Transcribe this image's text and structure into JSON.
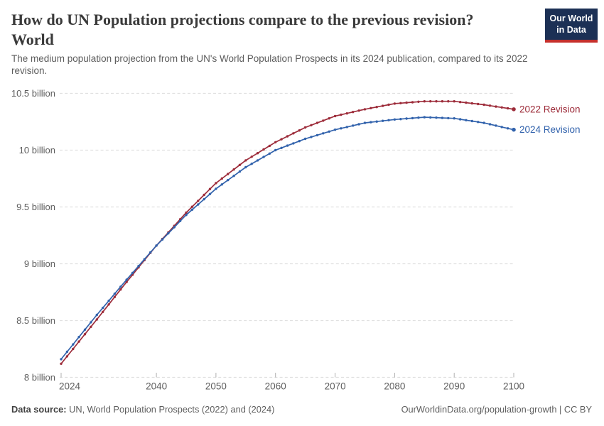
{
  "header": {
    "title_line1": "How do UN Population projections compare to the previous revision?",
    "title_line2": "World",
    "subtitle": "The medium population projection from the UN's World Population Prospects in its 2024 publication, compared to its 2022 revision.",
    "logo": {
      "line1": "Our World",
      "line2": "in Data",
      "bg_color": "#1c3055",
      "accent_color": "#c5302c"
    }
  },
  "footer": {
    "datasource_label": "Data source:",
    "datasource_text": " UN, World Population Prospects (2022) and (2024)",
    "credit": "OurWorldinData.org/population-growth | CC BY"
  },
  "chart_data": {
    "type": "line",
    "title": "How do UN Population projections compare to the previous revision? World",
    "xlabel": "",
    "ylabel": "",
    "unit": "billion people",
    "grid": "horizontal-dashed",
    "legend_position": "right-end-labels",
    "xlim": [
      2024,
      2100
    ],
    "ylim": [
      8,
      10.5
    ],
    "x_ticks": [
      2024,
      2040,
      2050,
      2060,
      2070,
      2080,
      2090,
      2100
    ],
    "y_ticks": [
      8,
      8.5,
      9,
      9.5,
      10,
      10.5
    ],
    "y_tick_labels": [
      "8 billion",
      "8.5 billion",
      "9 billion",
      "9.5 billion",
      "10 billion",
      "10.5 billion"
    ],
    "x": [
      2024,
      2025,
      2026,
      2027,
      2028,
      2029,
      2030,
      2031,
      2032,
      2033,
      2034,
      2035,
      2036,
      2037,
      2038,
      2039,
      2040,
      2041,
      2042,
      2043,
      2044,
      2045,
      2046,
      2047,
      2048,
      2049,
      2050,
      2051,
      2052,
      2053,
      2054,
      2055,
      2056,
      2057,
      2058,
      2059,
      2060,
      2061,
      2062,
      2063,
      2064,
      2065,
      2066,
      2067,
      2068,
      2069,
      2070,
      2071,
      2072,
      2073,
      2074,
      2075,
      2076,
      2077,
      2078,
      2079,
      2080,
      2081,
      2082,
      2083,
      2084,
      2085,
      2086,
      2087,
      2088,
      2089,
      2090,
      2091,
      2092,
      2093,
      2094,
      2095,
      2096,
      2097,
      2098,
      2099,
      2100
    ],
    "series": [
      {
        "name": "2022 Revision",
        "color": "#9D2C3A",
        "values": [
          8.12,
          8.185,
          8.25,
          8.315,
          8.38,
          8.445,
          8.51,
          8.576,
          8.642,
          8.708,
          8.774,
          8.84,
          8.904,
          8.968,
          9.032,
          9.096,
          9.16,
          9.218,
          9.276,
          9.334,
          9.392,
          9.45,
          9.502,
          9.554,
          9.606,
          9.658,
          9.71,
          9.75,
          9.79,
          9.83,
          9.87,
          9.91,
          9.942,
          9.974,
          10.006,
          10.038,
          10.07,
          10.096,
          10.122,
          10.148,
          10.174,
          10.2,
          10.22,
          10.24,
          10.26,
          10.28,
          10.3,
          10.312,
          10.324,
          10.336,
          10.348,
          10.36,
          10.37,
          10.38,
          10.39,
          10.4,
          10.41,
          10.414,
          10.418,
          10.422,
          10.426,
          10.43,
          10.43,
          10.43,
          10.43,
          10.43,
          10.43,
          10.424,
          10.418,
          10.412,
          10.406,
          10.4,
          10.392,
          10.384,
          10.376,
          10.368,
          10.36
        ]
      },
      {
        "name": "2024 Revision",
        "color": "#3162AC",
        "values": [
          8.16,
          8.225,
          8.29,
          8.355,
          8.42,
          8.485,
          8.55,
          8.612,
          8.674,
          8.736,
          8.798,
          8.86,
          8.92,
          8.98,
          9.04,
          9.1,
          9.16,
          9.214,
          9.268,
          9.322,
          9.376,
          9.43,
          9.476,
          9.522,
          9.568,
          9.614,
          9.66,
          9.698,
          9.736,
          9.774,
          9.812,
          9.85,
          9.88,
          9.91,
          9.94,
          9.97,
          10.0,
          10.02,
          10.04,
          10.06,
          10.08,
          10.1,
          10.116,
          10.132,
          10.148,
          10.164,
          10.18,
          10.192,
          10.204,
          10.216,
          10.228,
          10.24,
          10.246,
          10.252,
          10.258,
          10.264,
          10.27,
          10.274,
          10.278,
          10.282,
          10.286,
          10.29,
          10.288,
          10.286,
          10.284,
          10.282,
          10.28,
          10.272,
          10.264,
          10.256,
          10.248,
          10.24,
          10.228,
          10.216,
          10.204,
          10.192,
          10.18
        ]
      }
    ]
  }
}
